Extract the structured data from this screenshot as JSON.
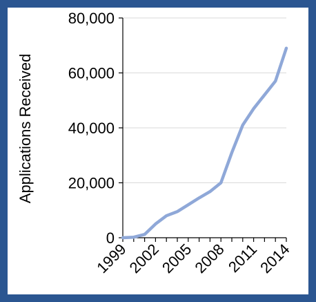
{
  "chart_data": {
    "type": "line",
    "title": "",
    "xlabel": "",
    "ylabel": "Applications Received",
    "x": [
      1999,
      2000,
      2001,
      2002,
      2003,
      2004,
      2005,
      2006,
      2007,
      2008,
      2009,
      2010,
      2011,
      2012,
      2013,
      2014
    ],
    "series": [
      {
        "values": [
          0,
          200,
          1200,
          5000,
          8000,
          9500,
          12000,
          14500,
          16800,
          20000,
          31000,
          41000,
          47000,
          52000,
          57000,
          69000
        ]
      }
    ],
    "x_tick_labels": [
      "1999",
      "2002",
      "2005",
      "2008",
      "2011",
      "2014"
    ],
    "y_tick_labels": [
      "0",
      "20,000",
      "40,000",
      "60,000",
      "80,000"
    ],
    "ylim": [
      0,
      80000
    ],
    "grid": "horizontal",
    "line_color": "#8fa8d8",
    "frame_color": "#2b5691"
  }
}
